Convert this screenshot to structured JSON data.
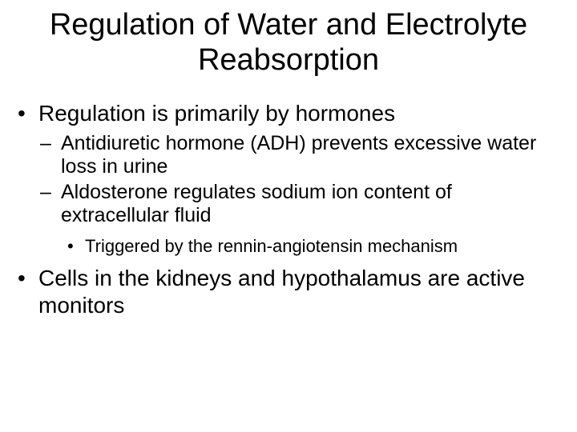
{
  "title": "Regulation of Water and Electrolyte Reabsorption",
  "bullets": {
    "item1": "Regulation is primarily by hormones",
    "sub1": "Antidiuretic hormone (ADH) prevents excessive water loss in urine",
    "sub2": "Aldosterone regulates sodium ion content of extracellular fluid",
    "subsub1": "Triggered by the rennin-angiotensin mechanism",
    "item2": "Cells in the kidneys and hypothalamus are active monitors"
  },
  "style": {
    "background_color": "#ffffff",
    "text_color": "#000000",
    "title_fontsize": 38,
    "level1_fontsize": 28,
    "level2_fontsize": 25,
    "level3_fontsize": 22,
    "font_family": "Arial"
  }
}
